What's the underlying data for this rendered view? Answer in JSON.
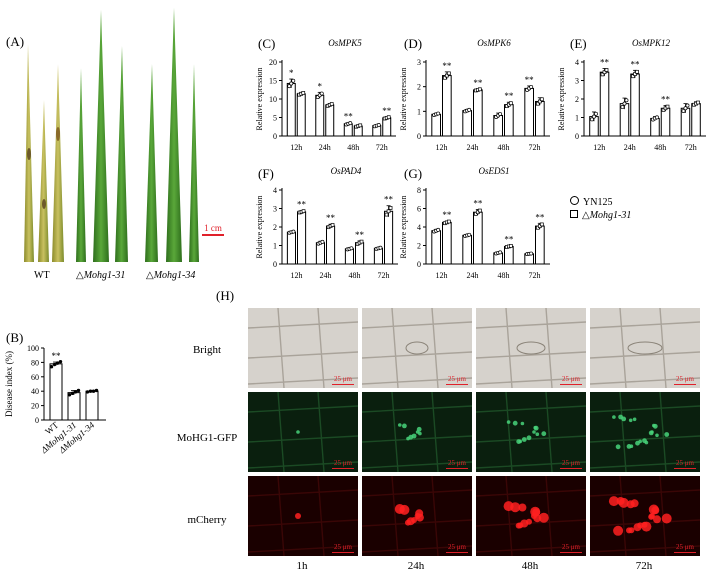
{
  "panel_labels": {
    "A": "(A)",
    "B": "(B)",
    "C": "(C)",
    "D": "(D)",
    "E": "(E)",
    "F": "(F)",
    "G": "(G)",
    "H": "(H)"
  },
  "panelA": {
    "strains": {
      "wt": "WT",
      "s31_prefix": "△",
      "s31_name": "Mohg1-31",
      "s34_prefix": "△",
      "s34_name": "Mohg1-34"
    },
    "scale_label": "1 cm",
    "colors": {
      "leaf": "#4f9a2c",
      "leaf_dark": "#2e6e1c",
      "lesion": "#c9b44a",
      "scale": "#e0202a"
    }
  },
  "legend": {
    "yn125": "YN125",
    "mutant_prefix": "△",
    "mutant_name": "Mohg1-31"
  },
  "panelH": {
    "rows": [
      "Bright",
      "MoHG1-GFP",
      "mCherry"
    ],
    "times": [
      "1h",
      "24h",
      "48h",
      "72h"
    ],
    "scale_label": "25 μm",
    "colors": {
      "bright": "#d6d2cc",
      "gfp": "#0a1f0e",
      "gfp_signal": "#48d47a",
      "mcherry": "#1a0000",
      "mcherry_signal": "#ff2020"
    }
  },
  "chart_data": [
    {
      "id": "B",
      "type": "bar",
      "panel": "(B)",
      "categories": [
        "WT",
        "ΔMohg1-31",
        "ΔMohg1-34"
      ],
      "values": [
        78,
        38,
        40
      ],
      "points": [
        [
          74,
          77,
          79,
          81
        ],
        [
          35,
          37,
          39,
          41
        ],
        [
          39,
          40,
          40,
          41
        ]
      ],
      "errors": [
        2.5,
        3,
        1
      ],
      "sig": [
        "**",
        "",
        ""
      ],
      "ylabel": "Disease index (%)",
      "ylim": [
        0,
        100
      ],
      "yticks": [
        0,
        20,
        40,
        60,
        80,
        100
      ]
    },
    {
      "id": "C",
      "type": "bar",
      "panel": "(C)",
      "title": "OsMPK5",
      "categories": [
        "12h",
        "24h",
        "48h",
        "72h"
      ],
      "series": [
        {
          "name": "YN125",
          "values": [
            14.2,
            11.0,
            3.3,
            2.8
          ]
        },
        {
          "name": "ΔMohg1-31",
          "values": [
            11.4,
            8.4,
            2.7,
            4.9
          ]
        }
      ],
      "errors": [
        [
          1.2,
          0.8,
          0.3,
          0.3
        ],
        [
          0.4,
          0.4,
          0.3,
          0.3
        ]
      ],
      "sig": [
        "*",
        "*",
        "**",
        "**"
      ],
      "ylabel": "Relative expression",
      "ylim": [
        0,
        20
      ],
      "yticks": [
        0,
        5,
        10,
        15,
        20
      ]
    },
    {
      "id": "D",
      "type": "bar",
      "panel": "(D)",
      "title": "OsMPK6",
      "categories": [
        "12h",
        "24h",
        "48h",
        "72h"
      ],
      "series": [
        {
          "name": "YN125",
          "values": [
            0.88,
            1.03,
            0.83,
            1.93
          ]
        },
        {
          "name": "ΔMohg1-31",
          "values": [
            2.45,
            1.87,
            1.27,
            1.4
          ]
        }
      ],
      "errors": [
        [
          0.05,
          0.05,
          0.1,
          0.1
        ],
        [
          0.15,
          0.04,
          0.1,
          0.15
        ]
      ],
      "sig": [
        "**",
        "**",
        "**",
        "**"
      ],
      "ylabel": "Relative expression",
      "ylim": [
        0,
        3
      ],
      "yticks": [
        0,
        1,
        2,
        3
      ]
    },
    {
      "id": "E",
      "type": "bar",
      "panel": "(E)",
      "title": "OsMPK12",
      "categories": [
        "12h",
        "24h",
        "48h",
        "72h"
      ],
      "series": [
        {
          "name": "YN125",
          "values": [
            1.05,
            1.75,
            0.95,
            1.5
          ]
        },
        {
          "name": "ΔMohg1-31",
          "values": [
            3.45,
            3.35,
            1.5,
            1.75
          ]
        }
      ],
      "errors": [
        [
          0.25,
          0.3,
          0.1,
          0.25
        ],
        [
          0.2,
          0.2,
          0.15,
          0.1
        ]
      ],
      "sig": [
        "**",
        "**",
        "**",
        ""
      ],
      "ylabel": "Relative expression",
      "ylim": [
        0,
        4
      ],
      "yticks": [
        0,
        1,
        2,
        3,
        4
      ]
    },
    {
      "id": "F",
      "type": "bar",
      "panel": "(F)",
      "title": "OsPAD4",
      "categories": [
        "12h",
        "24h",
        "48h",
        "72h"
      ],
      "series": [
        {
          "name": "YN125",
          "values": [
            1.72,
            1.15,
            0.82,
            0.85
          ]
        },
        {
          "name": "ΔMohg1-31",
          "values": [
            2.82,
            2.05,
            1.15,
            2.85
          ]
        }
      ],
      "errors": [
        [
          0.05,
          0.08,
          0.05,
          0.05
        ],
        [
          0.06,
          0.1,
          0.1,
          0.3
        ]
      ],
      "sig": [
        "**",
        "**",
        "**",
        "**"
      ],
      "ylabel": "Relative expression",
      "ylim": [
        0,
        4
      ],
      "yticks": [
        0,
        1,
        2,
        3,
        4
      ]
    },
    {
      "id": "G",
      "type": "bar",
      "panel": "(G)",
      "title": "OsEDS1",
      "categories": [
        "12h",
        "24h",
        "48h",
        "72h"
      ],
      "series": [
        {
          "name": "YN125",
          "values": [
            3.6,
            3.1,
            1.2,
            1.1
          ]
        },
        {
          "name": "ΔMohg1-31",
          "values": [
            4.5,
            5.6,
            1.9,
            4.1
          ]
        }
      ],
      "errors": [
        [
          0.15,
          0.1,
          0.1,
          0.05
        ],
        [
          0.15,
          0.3,
          0.1,
          0.3
        ]
      ],
      "sig": [
        "**",
        "**",
        "**",
        "**"
      ],
      "ylabel": "Relative expression",
      "ylim": [
        0,
        8
      ],
      "yticks": [
        0,
        2,
        4,
        6,
        8
      ]
    }
  ]
}
